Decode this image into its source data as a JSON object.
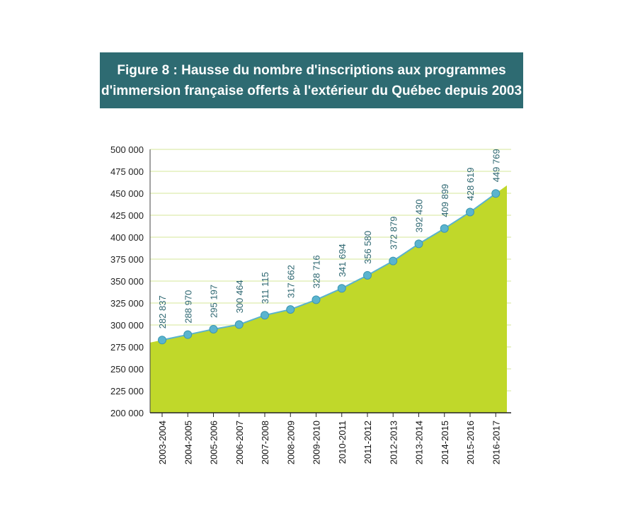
{
  "title": {
    "line1": "Figure 8 : Hausse du nombre d'inscriptions aux programmes",
    "line2": "d'immersion française offerts à l'extérieur du Québec depuis 2003"
  },
  "chart_data": {
    "type": "area",
    "title": "Figure 8 : Hausse du nombre d'inscriptions aux programmes d'immersion française offerts à l'extérieur du Québec depuis 2003",
    "categories": [
      "2003-2004",
      "2004-2005",
      "2005-2006",
      "2006-2007",
      "2007-2008",
      "2008-2009",
      "2009-2010",
      "2010-2011",
      "2011-2012",
      "2012-2013",
      "2013-2014",
      "2014-2015",
      "2015-2016",
      "2016-2017"
    ],
    "values": [
      282837,
      288970,
      295197,
      300464,
      311115,
      317662,
      328716,
      341694,
      356580,
      372879,
      392430,
      409899,
      428619,
      449769
    ],
    "value_labels": [
      "282 837",
      "288 970",
      "295 197",
      "300 464",
      "311 115",
      "317 662",
      "328 716",
      "341 694",
      "356 580",
      "372 879",
      "392 430",
      "409 899",
      "428 619",
      "449 769"
    ],
    "ylim": [
      200000,
      500000
    ],
    "yticks": [
      200000,
      225000,
      250000,
      275000,
      300000,
      325000,
      350000,
      375000,
      400000,
      425000,
      450000,
      475000,
      500000
    ],
    "ytick_labels": [
      "200 000",
      "225 000",
      "250 000",
      "275 000",
      "300 000",
      "325 000",
      "350 000",
      "375 000",
      "400 000",
      "425 000",
      "450 000",
      "475 000",
      "500 000"
    ],
    "grid": true,
    "xlabel": "",
    "ylabel": "",
    "colors": {
      "area": "#c0d82a",
      "line": "#5bb3cc",
      "marker": "#5ab4cf",
      "marker_edge": "#3c96b2",
      "grid": "#d6e79a",
      "label": "#2c6670",
      "title_bg": "#2e6b72"
    }
  }
}
